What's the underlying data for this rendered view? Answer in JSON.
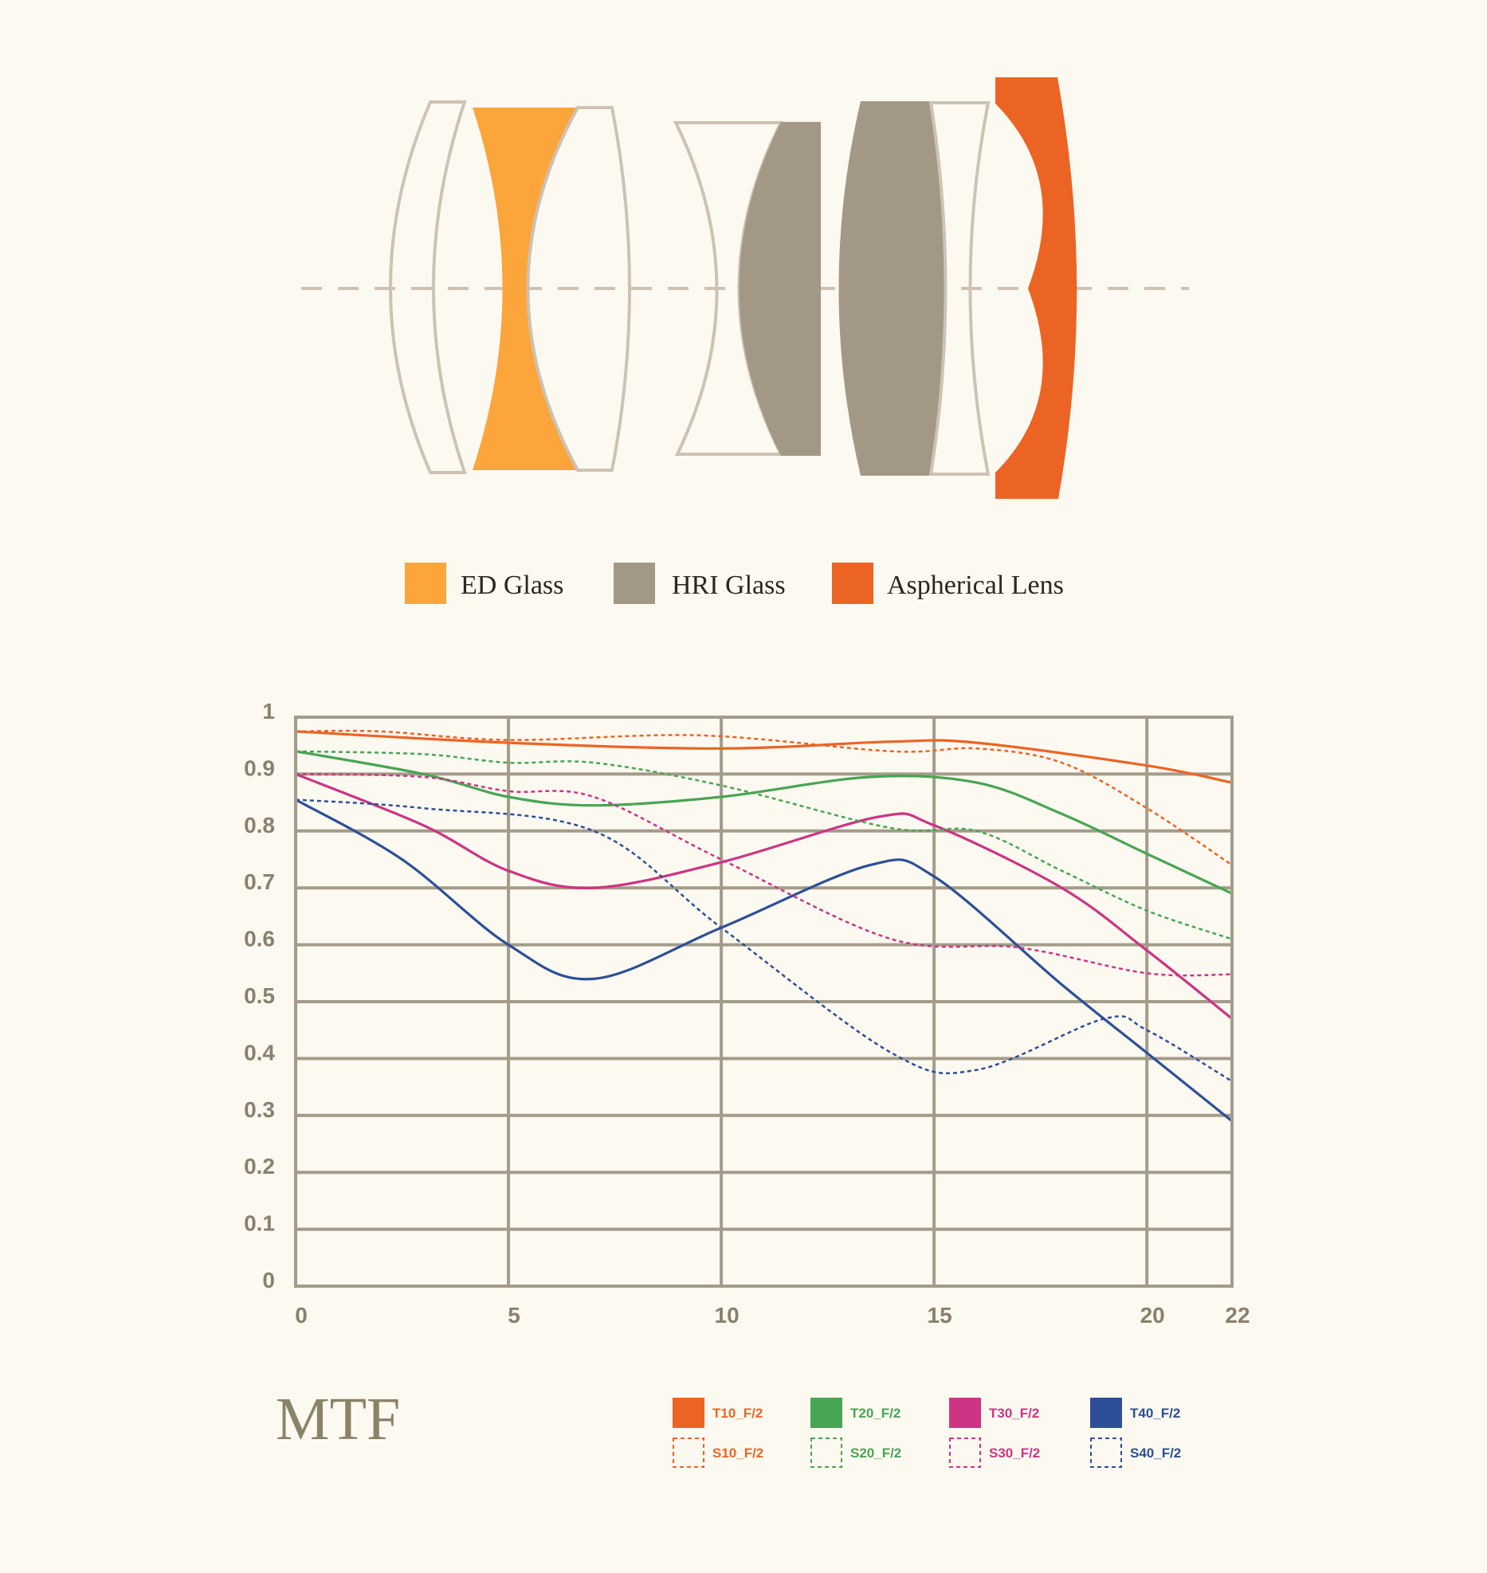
{
  "lens_legend": [
    {
      "label": "ED Glass",
      "color": "#fba53b"
    },
    {
      "label": "HRI Glass",
      "color": "#a39886"
    },
    {
      "label": "Aspherical Lens",
      "color": "#ec6424"
    }
  ],
  "chart_data": {
    "type": "line",
    "title": "MTF",
    "xlabel": "",
    "ylabel": "",
    "xlim": [
      0,
      22
    ],
    "ylim": [
      0,
      1
    ],
    "x_ticks": [
      "0",
      "5",
      "10",
      "15",
      "20",
      "22"
    ],
    "y_ticks": [
      "0",
      "0.1",
      "0.2",
      "0.3",
      "0.4",
      "0.5",
      "0.6",
      "0.7",
      "0.8",
      "0.9",
      "1"
    ],
    "grid": true,
    "legend_position": "bottom-right",
    "series": [
      {
        "name": "T10_F/2",
        "color": "#ec6424",
        "dashed": false,
        "x": [
          0,
          5,
          10,
          14,
          16,
          20,
          22
        ],
        "y": [
          0.975,
          0.955,
          0.945,
          0.957,
          0.955,
          0.915,
          0.885
        ]
      },
      {
        "name": "T20_F/2",
        "color": "#48a553",
        "dashed": false,
        "x": [
          0,
          3,
          5,
          7,
          10,
          13.5,
          16,
          18,
          20,
          22
        ],
        "y": [
          0.94,
          0.9,
          0.86,
          0.845,
          0.86,
          0.895,
          0.885,
          0.83,
          0.76,
          0.69
        ]
      },
      {
        "name": "T30_F/2",
        "color": "#cd3483",
        "dashed": false,
        "x": [
          0,
          3,
          5,
          7,
          10,
          13.7,
          15,
          18,
          20,
          22
        ],
        "y": [
          0.9,
          0.81,
          0.73,
          0.7,
          0.745,
          0.825,
          0.81,
          0.7,
          0.59,
          0.47
        ]
      },
      {
        "name": "T40_F/2",
        "color": "#2d4f97",
        "dashed": false,
        "x": [
          0,
          2.5,
          5,
          7,
          10,
          13.5,
          15,
          18,
          20,
          22
        ],
        "y": [
          0.855,
          0.75,
          0.6,
          0.54,
          0.63,
          0.74,
          0.72,
          0.53,
          0.41,
          0.29
        ]
      },
      {
        "name": "S10_F/2",
        "color": "#ec6424",
        "dashed": true,
        "x": [
          0,
          2,
          5,
          9.5,
          14,
          16,
          18,
          20,
          22
        ],
        "y": [
          0.975,
          0.975,
          0.96,
          0.968,
          0.94,
          0.945,
          0.92,
          0.84,
          0.74
        ]
      },
      {
        "name": "S20_F/2",
        "color": "#48a553",
        "dashed": true,
        "x": [
          0,
          3,
          5,
          7,
          10,
          14,
          16,
          18,
          20,
          22
        ],
        "y": [
          0.94,
          0.935,
          0.92,
          0.92,
          0.88,
          0.805,
          0.8,
          0.73,
          0.66,
          0.61
        ]
      },
      {
        "name": "S30_F/2",
        "color": "#cd3483",
        "dashed": true,
        "x": [
          0,
          3,
          5,
          7,
          10,
          14,
          17,
          20,
          22
        ],
        "y": [
          0.9,
          0.895,
          0.87,
          0.86,
          0.75,
          0.61,
          0.595,
          0.55,
          0.548
        ]
      },
      {
        "name": "S40_F/2",
        "color": "#2d4f97",
        "dashed": true,
        "x": [
          0,
          3,
          7,
          10,
          14,
          16,
          19,
          20,
          22
        ],
        "y": [
          0.855,
          0.84,
          0.8,
          0.63,
          0.41,
          0.38,
          0.47,
          0.45,
          0.36
        ]
      }
    ]
  }
}
